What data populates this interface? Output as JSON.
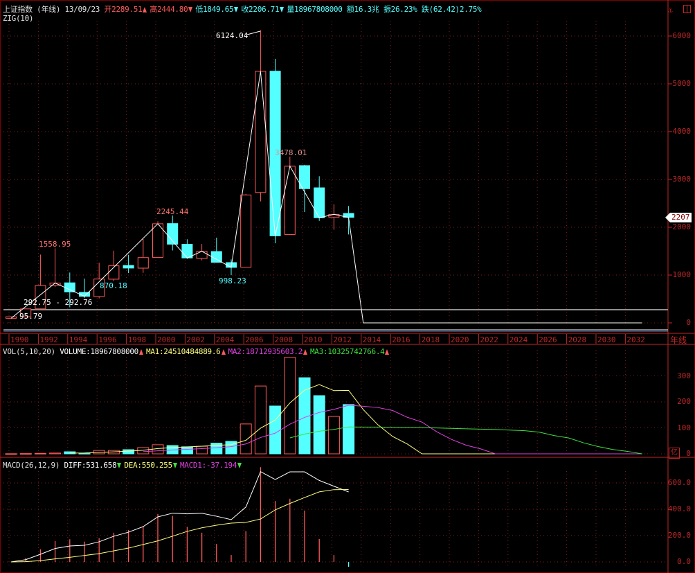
{
  "header": {
    "title": "上证指数",
    "period": "(年线)",
    "date": "13/09/23",
    "open_label": "开",
    "open": "2289.51",
    "high_label": "高",
    "high": "2444.80",
    "low_label": "低",
    "low": "1849.65",
    "close_label": "收",
    "close": "2206.71",
    "volume_label": "量",
    "volume": "18967808000",
    "amount_label": "额",
    "amount": "16.3兆",
    "amplitude_label": "振",
    "amplitude": "26.23%",
    "change_label": "跌",
    "change": "(62.42)2.75%",
    "indicator": "ZIG(10)"
  },
  "colors": {
    "up": "#ff5a5a",
    "down": "#54ffff",
    "axis": "#c02828",
    "ma1": "#ffff80",
    "ma2": "#e040e0",
    "ma3": "#40e040",
    "diff": "#ffffff",
    "dea": "#ffff80"
  },
  "price_tag": "2207",
  "period_label": "年线",
  "volume_unit": "亿",
  "icons": {
    "pin": "pin-icon",
    "panel": "panel-toggle-icon"
  },
  "vol_legend": {
    "name": "VOL(5,10,20)",
    "volume": "VOLUME:18967808000",
    "ma1": "MA1:24510484889.6",
    "ma2": "MA2:18712935603.2",
    "ma3": "MA3:10325742766.4"
  },
  "macd_legend": {
    "name": "MACD(26,12,9)",
    "diff": "DIFF:531.658",
    "dea": "DEA:550.255",
    "macd": "MACD1:-37.194"
  },
  "annotations": [
    "6124.04",
    "3478.01",
    "2245.44",
    "1558.95",
    "870.18",
    "998.23",
    "292.75 - 292.76",
    "95.79"
  ],
  "chart_data": [
    {
      "type": "candlestick",
      "title": "上证指数 (年线)",
      "x_labels": [
        "1990",
        "1992",
        "1994",
        "1996",
        "1998",
        "2000",
        "2002",
        "2004",
        "2006",
        "2008",
        "2010",
        "2012",
        "2014",
        "2016",
        "2018",
        "2020",
        "2022",
        "2024",
        "2026",
        "2028",
        "2030",
        "2032"
      ],
      "xlim": [
        1990,
        2033
      ],
      "ylim": [
        0,
        6200
      ],
      "y_ticks": [
        "0",
        "1000",
        "2000",
        "3000",
        "4000",
        "5000",
        "6000"
      ],
      "years": [
        1990,
        1991,
        1992,
        1993,
        1994,
        1995,
        1996,
        1997,
        1998,
        1999,
        2000,
        2001,
        2002,
        2003,
        2004,
        2005,
        2006,
        2007,
        2008,
        2009,
        2010,
        2011,
        2012,
        2013
      ],
      "open": [
        96.05,
        127.61,
        293.74,
        784.13,
        837.7,
        637.72,
        550.26,
        914.06,
        1200.95,
        1144.89,
        1368.69,
        2077.08,
        1643.48,
        1347.43,
        1492.72,
        1260.78,
        1163.88,
        2728.19,
        5265.0,
        1849.02,
        3289.75,
        2825.33,
        2212.0,
        2289.51
      ],
      "high": [
        127.61,
        292.75,
        1429.01,
        1558.95,
        1052.94,
        926.41,
        1258.69,
        1510.18,
        1422.98,
        1756.18,
        2125.72,
        2245.44,
        1748.89,
        1649.6,
        1783.01,
        1328.53,
        2698.9,
        6124.04,
        5522.78,
        3478.01,
        3306.75,
        3067.46,
        2478.38,
        2444.8
      ],
      "low": [
        95.79,
        104.96,
        292.76,
        750.46,
        325.89,
        524.43,
        512.83,
        870.18,
        1043.02,
        1047.83,
        1361.21,
        1514.86,
        1339.2,
        1307.4,
        1259.43,
        998.23,
        1161.91,
        2541.52,
        1664.93,
        1844.09,
        2319.74,
        2134.02,
        1949.46,
        1849.65
      ],
      "close": [
        127.61,
        292.75,
        780.39,
        833.8,
        647.87,
        555.29,
        917.02,
        1194.1,
        1146.7,
        1366.58,
        2073.48,
        1645.97,
        1357.65,
        1497.04,
        1266.5,
        1161.06,
        2675.47,
        5261.56,
        1820.81,
        3277.14,
        2808.08,
        2199.42,
        2269.13,
        2206.71
      ],
      "zig": {
        "name": "ZIG(10)",
        "points": [
          [
            1990,
            96.05
          ],
          [
            1993,
            833.8
          ],
          [
            1995,
            555.29
          ],
          [
            2000,
            2073.48
          ],
          [
            2002,
            1357.65
          ],
          [
            2003,
            1497.04
          ],
          [
            2005,
            1161.06
          ],
          [
            2007,
            5261.56
          ],
          [
            2008,
            1820.81
          ],
          [
            2009,
            3277.14
          ],
          [
            2011,
            2199.42
          ],
          [
            2012,
            2269.13
          ],
          [
            2013,
            2206.71
          ],
          [
            2014,
            0
          ],
          [
            2033,
            0
          ]
        ]
      },
      "current_price": 2207
    },
    {
      "type": "bar",
      "title": "VOL(5,10,20)",
      "unit": "亿",
      "ylim": [
        0,
        380
      ],
      "y_ticks": [
        "0",
        "100",
        "200",
        "300"
      ],
      "years": [
        1990,
        1991,
        1992,
        1993,
        1994,
        1995,
        1996,
        1997,
        1998,
        1999,
        2000,
        2001,
        2002,
        2003,
        2004,
        2005,
        2006,
        2007,
        2008,
        2009,
        2010,
        2011,
        2012,
        2013
      ],
      "values": [
        0.5,
        1,
        2,
        3,
        8,
        2,
        13,
        13,
        16,
        24,
        35,
        32,
        27,
        29,
        41,
        48,
        115,
        261,
        184,
        371,
        293,
        224,
        144,
        189.68
      ],
      "series": [
        {
          "name": "MA1",
          "period": 5
        },
        {
          "name": "MA2",
          "period": 10
        },
        {
          "name": "MA3",
          "period": 20
        }
      ]
    },
    {
      "type": "line",
      "title": "MACD(26,12,9)",
      "ylim": [
        -30,
        720
      ],
      "y_ticks": [
        "0.0",
        "200.0",
        "400.0",
        "600.0"
      ],
      "years": [
        1990,
        1991,
        1992,
        1993,
        1994,
        1995,
        1996,
        1997,
        1998,
        1999,
        2000,
        2001,
        2002,
        2003,
        2004,
        2005,
        2006,
        2007,
        2008,
        2009,
        2010,
        2011,
        2012,
        2013
      ],
      "series": [
        {
          "name": "DIFF",
          "values": [
            0,
            17,
            58,
            102,
            121,
            126,
            153,
            195,
            226,
            268,
            342,
            370,
            365,
            370,
            347,
            321,
            417,
            686,
            626,
            684,
            684,
            619,
            575,
            531.658
          ]
        },
        {
          "name": "DEA",
          "values": [
            0,
            2,
            10,
            23,
            35,
            49,
            63,
            84,
            105,
            132,
            160,
            195,
            232,
            259,
            279,
            295,
            300,
            326,
            395,
            444,
            489,
            532,
            549,
            550.255
          ]
        }
      ],
      "bars": "MACD1"
    }
  ]
}
